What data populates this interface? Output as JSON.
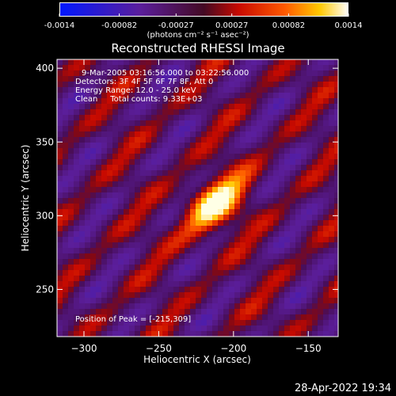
{
  "colorbar": {
    "ticks": [
      "-0.0014",
      "-0.00082",
      "-0.00027",
      "0.00027",
      "0.00082",
      "0.0014"
    ],
    "tick_values": [
      -0.0014,
      -0.00082,
      -0.00027,
      0.00027,
      0.00082,
      0.0014
    ],
    "units_label": "(photons cm⁻² s⁻¹ asec⁻²)"
  },
  "title": "Reconstructed RHESSI Image",
  "annotations": {
    "line1": "9-Mar-2005 03:16:56.000 to 03:22:56.000",
    "line2": "Detectors: 3F 4F 5F 6F 7F 8F, Att 0",
    "line3": "Energy Range: 12.0 - 25.0 keV",
    "line4": "Clean     Total counts: 9.33E+03",
    "peak": "Position of Peak = [-215,309]"
  },
  "footer": "28-Apr-2022 19:34",
  "chart_data": {
    "type": "heatmap",
    "title": "Reconstructed RHESSI Image",
    "xlabel": "Heliocentric X (arcsec)",
    "ylabel": "Heliocentric Y (arcsec)",
    "xlim": [
      -318,
      -130
    ],
    "ylim": [
      218,
      406
    ],
    "xticks": [
      -300,
      -250,
      -200,
      -150
    ],
    "yticks": [
      250,
      300,
      350,
      400
    ],
    "peak_position": [
      -215,
      309
    ],
    "peak_value": 0.0014,
    "color_range": [
      -0.0014,
      0.0014
    ],
    "colormap": "blue-purple-red-orange-yellow-white",
    "fringe_direction": "diagonal, lower-left to upper-right"
  }
}
